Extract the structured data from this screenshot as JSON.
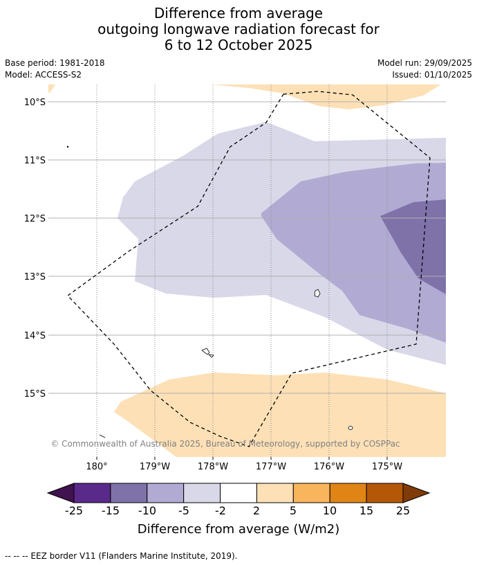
{
  "title": {
    "line1": "Difference from average",
    "line2": "outgoing longwave radiation forecast for",
    "line3": "6 to 12 October 2025"
  },
  "meta": {
    "base_period": "Base period: 1981-2018",
    "model": "Model: ACCESS-S2",
    "model_run": "Model run: 29/09/2025",
    "issued": "Issued: 01/10/2025"
  },
  "map": {
    "lat_labels": [
      "10°S",
      "11°S",
      "12°S",
      "13°S",
      "14°S",
      "15°S"
    ],
    "lon_labels": [
      "180°",
      "179°W",
      "178°W",
      "177°W",
      "176°W",
      "175°W"
    ],
    "copyright": "© Commonwealth of Australia 2025, Bureau of Meteorology, supported by COSPPac",
    "colors": {
      "neg_2_5": "#d8d8e9",
      "neg_5_10": "#b1abd3",
      "neg_10_15": "#7e72a9",
      "pos_2_5": "#fde0b6"
    }
  },
  "colorbar": {
    "tick_labels": [
      "-25",
      "-15",
      "-10",
      "-5",
      "-2",
      "2",
      "5",
      "10",
      "15",
      "25"
    ],
    "colors": [
      "#40124f",
      "#5a2a8a",
      "#7e72a9",
      "#b1abd3",
      "#d8d8e9",
      "#ffffff",
      "#fde0b6",
      "#f8b55c",
      "#e08416",
      "#b45706",
      "#7f3b08"
    ],
    "title": "Difference from average (W/m2)"
  },
  "footer": {
    "legend_text": "--  --  -- EEZ border V11 (Flanders Marine Institute, 2019)."
  }
}
